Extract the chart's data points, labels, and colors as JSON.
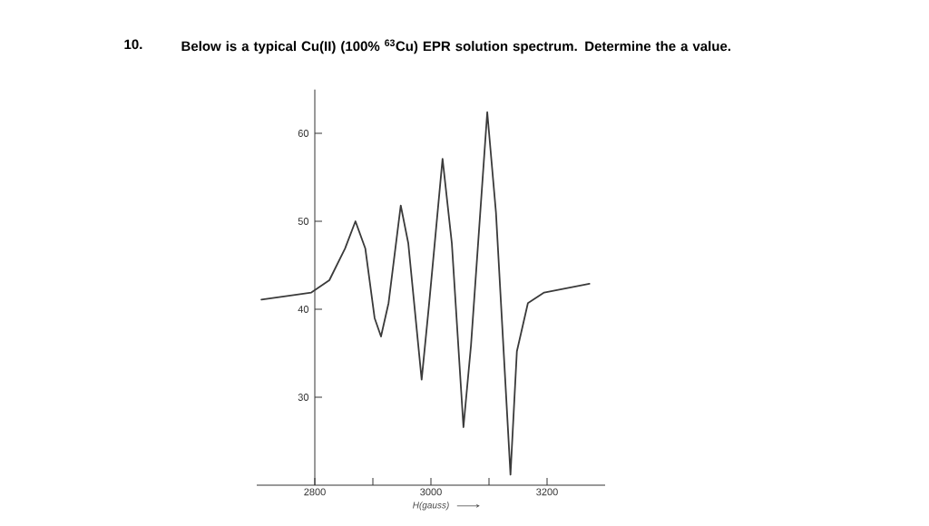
{
  "chart_data": {
    "type": "line",
    "title": "Below is a typical Cu(II) (100% $^{63}$Cu) EPR solution spectrum. Determine the a value.",
    "annotations": [
      "10."
    ],
    "xlabel": "H(gauss)",
    "x": [
      2708,
      2794,
      2825,
      2852,
      2870,
      2887,
      2903,
      2914,
      2927,
      2948,
      2961,
      2984,
      2997,
      3020,
      3036,
      3056,
      3069,
      3097,
      3112,
      3137,
      3148,
      3167,
      3195,
      3273
    ],
    "values": [
      41.1,
      41.9,
      43.3,
      46.9,
      50.0,
      46.9,
      39.0,
      36.9,
      40.7,
      51.8,
      47.5,
      32.0,
      40.7,
      57.1,
      47.5,
      26.6,
      35.9,
      62.4,
      51.0,
      21.2,
      35.2,
      40.7,
      41.9,
      42.9
    ],
    "color": "#3a3a3a",
    "xlim": [
      2700,
      3300
    ],
    "ylim": [
      20,
      65
    ],
    "xticks": [
      2800,
      {
        "value": 2900,
        "label": null
      },
      3000,
      {
        "value": 3100,
        "label": null
      },
      3200
    ],
    "yticks": [
      30,
      40,
      50,
      60
    ]
  }
}
